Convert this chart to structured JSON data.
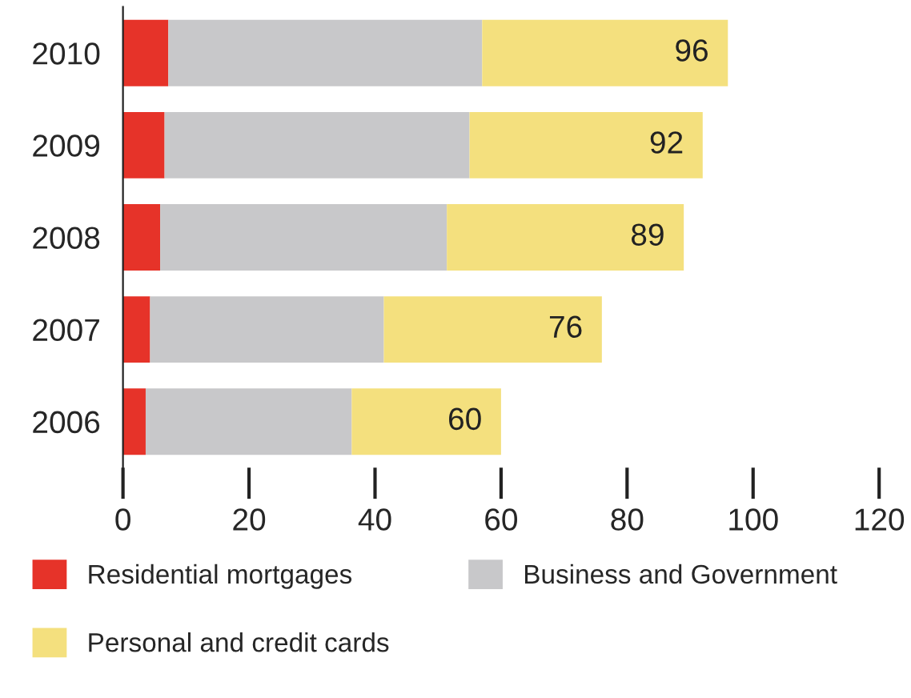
{
  "chart_data": {
    "type": "bar",
    "orientation": "horizontal",
    "stacked": true,
    "categories": [
      "2010",
      "2009",
      "2008",
      "2007",
      "2006"
    ],
    "series": [
      {
        "name": "Residential mortgages",
        "color": "#e63329",
        "values": [
          7.2,
          6.6,
          5.9,
          4.3,
          3.6
        ]
      },
      {
        "name": "Business and Government",
        "color": "#c8c8ca",
        "values": [
          49.8,
          48.4,
          45.5,
          37.1,
          32.7
        ]
      },
      {
        "name": "Personal and credit cards",
        "color": "#f4e07e",
        "values": [
          39.0,
          37.0,
          37.6,
          34.6,
          23.7
        ]
      }
    ],
    "totals": [
      "96",
      "92",
      "89",
      "76",
      "60"
    ],
    "xlim": [
      0,
      120
    ],
    "xticks": [
      0,
      20,
      40,
      60,
      80,
      100,
      120
    ],
    "legend": "bottom",
    "grid": false
  }
}
